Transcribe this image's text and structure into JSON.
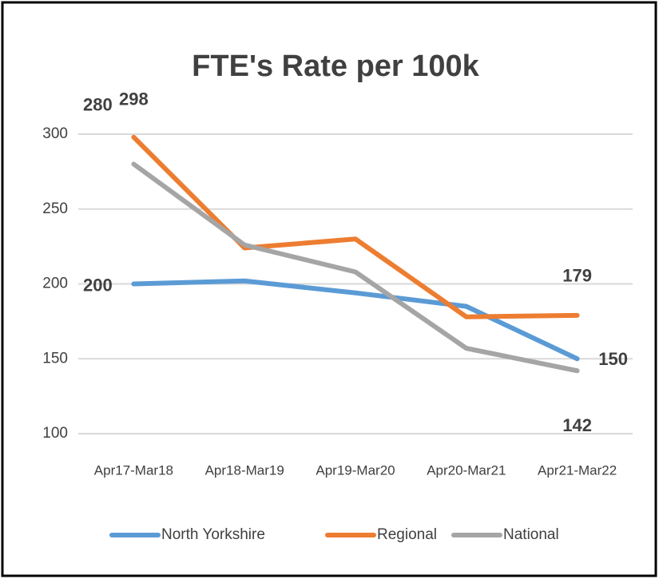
{
  "chart_data": {
    "type": "line",
    "title": "FTE's Rate per 100k",
    "categories": [
      "Apr17-Mar18",
      "Apr18-Mar19",
      "Apr19-Mar20",
      "Apr20-Mar21",
      "Apr21-Mar22"
    ],
    "series": [
      {
        "name": "North Yorkshire",
        "color": "#5b9bd5",
        "values": [
          200,
          202,
          194,
          185,
          150
        ],
        "value_labels": [
          "200",
          null,
          null,
          null,
          "150"
        ]
      },
      {
        "name": "Regional",
        "color": "#ed7d31",
        "values": [
          298,
          224,
          230,
          178,
          179
        ],
        "value_labels": [
          "298",
          null,
          null,
          null,
          "179"
        ]
      },
      {
        "name": "National",
        "color": "#a5a5a5",
        "values": [
          280,
          226,
          208,
          157,
          142
        ],
        "value_labels": [
          "280",
          null,
          null,
          null,
          "142"
        ]
      }
    ],
    "ylim": [
      100,
      300
    ],
    "yticks": [
      100,
      150,
      200,
      250,
      300
    ],
    "grid": true,
    "legend": "bottom"
  }
}
